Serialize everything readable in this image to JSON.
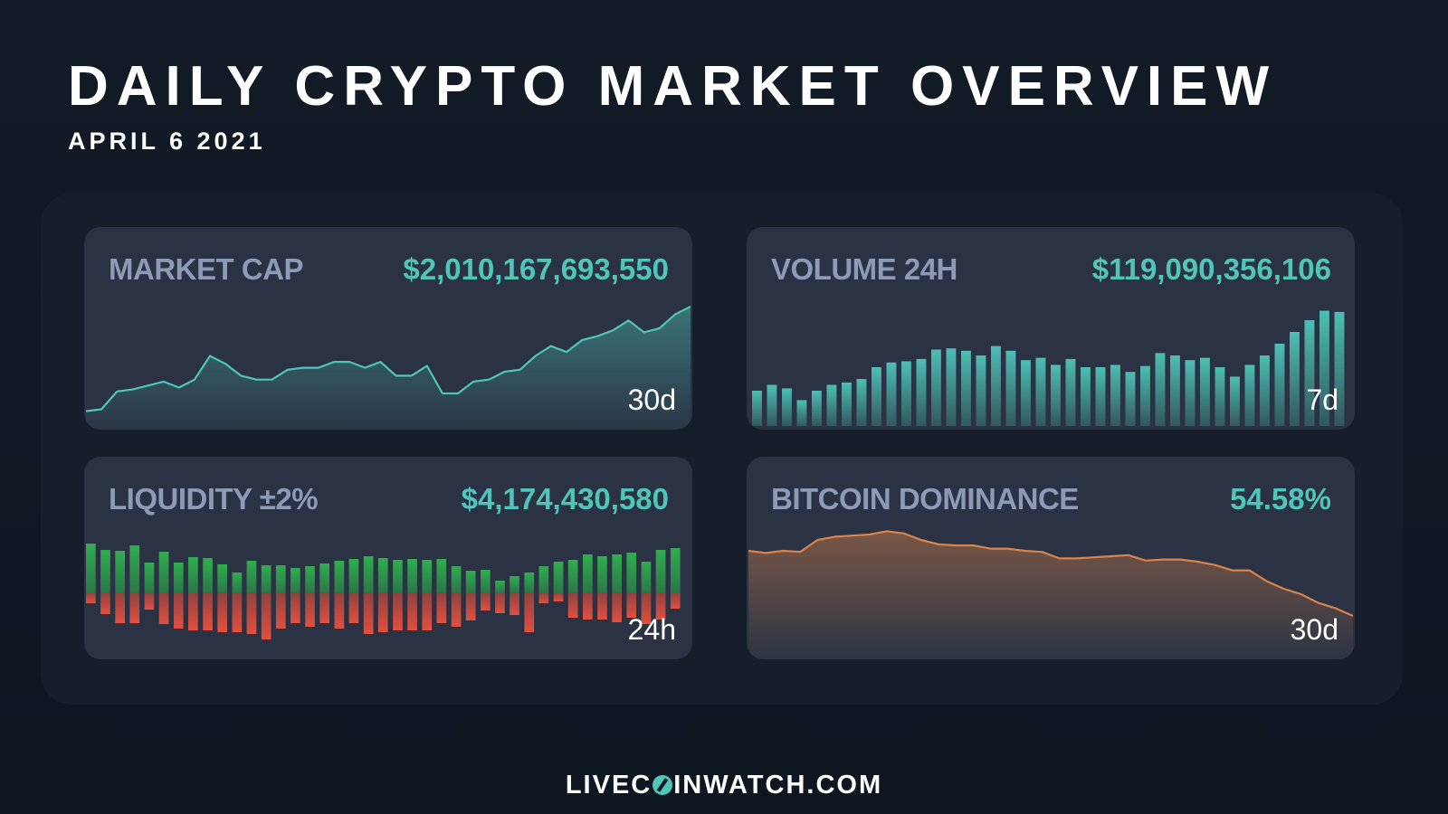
{
  "header": {
    "title": "DAILY CRYPTO MARKET OVERVIEW",
    "date": "APRIL 6 2021"
  },
  "footer": {
    "brand_left": "LIVEC",
    "brand_icon": "coin-swoosh-icon",
    "brand_right": "INWATCH.COM"
  },
  "colors": {
    "accent": "#4fc6b8",
    "label": "#8e9bb6",
    "card_bg": "#2a3244",
    "board_bg": "#161e2b",
    "bid": "#2fae4e",
    "ask": "#e0503f",
    "dominance": "#d9844a"
  },
  "chart_data": [
    {
      "id": "market_cap",
      "type": "area",
      "label": "MARKET CAP",
      "value": "$2,010,167,693,550",
      "period": "30d",
      "values": [
        2,
        3,
        12,
        13,
        15,
        17,
        14,
        18,
        30,
        26,
        20,
        18,
        18,
        23,
        24,
        24,
        27,
        27,
        24,
        27,
        20,
        20,
        25,
        11,
        11,
        17,
        18,
        22,
        23,
        30,
        35,
        32,
        38,
        40,
        43,
        48,
        42,
        44,
        51,
        55
      ]
    },
    {
      "id": "volume_24h",
      "type": "bar",
      "label": "VOLUME 24H",
      "value": "$119,090,356,106",
      "period": "7d",
      "values": [
        30,
        35,
        32,
        22,
        30,
        35,
        37,
        40,
        50,
        54,
        55,
        57,
        65,
        66,
        64,
        60,
        68,
        64,
        56,
        58,
        52,
        57,
        50,
        50,
        52,
        46,
        51,
        62,
        60,
        56,
        58,
        50,
        42,
        52,
        60,
        70,
        80,
        90,
        98,
        97
      ]
    },
    {
      "id": "liquidity",
      "type": "bar",
      "label": "LIQUIDITY ±2%",
      "value": "$4,174,430,580",
      "period": "24h",
      "bids": [
        54,
        47,
        46,
        52,
        33,
        45,
        33,
        39,
        38,
        31,
        22,
        35,
        30,
        30,
        27,
        29,
        32,
        35,
        37,
        40,
        38,
        36,
        37,
        36,
        37,
        29,
        24,
        25,
        13,
        18,
        22,
        29,
        34,
        36,
        42,
        40,
        42,
        44,
        34,
        47,
        49
      ],
      "asks": [
        -12,
        -24,
        -34,
        -34,
        -19,
        -35,
        -40,
        -42,
        -42,
        -44,
        -44,
        -46,
        -52,
        -40,
        -34,
        -38,
        -34,
        -40,
        -34,
        -46,
        -44,
        -42,
        -42,
        -42,
        -34,
        -38,
        -31,
        -20,
        -23,
        -25,
        -44,
        -12,
        -10,
        -28,
        -30,
        -30,
        -33,
        -28,
        -35,
        -30,
        -18
      ]
    },
    {
      "id": "btc_dominance",
      "type": "area",
      "label": "BITCOIN DOMINANCE",
      "value": "54.58%",
      "period": "30d",
      "values": [
        90,
        88,
        90,
        89,
        100,
        103,
        104,
        105,
        108,
        106,
        100,
        96,
        95,
        95,
        92,
        92,
        90,
        89,
        83,
        83,
        84,
        85,
        86,
        81,
        82,
        82,
        80,
        77,
        72,
        72,
        62,
        55,
        50,
        42,
        37,
        30
      ]
    }
  ]
}
